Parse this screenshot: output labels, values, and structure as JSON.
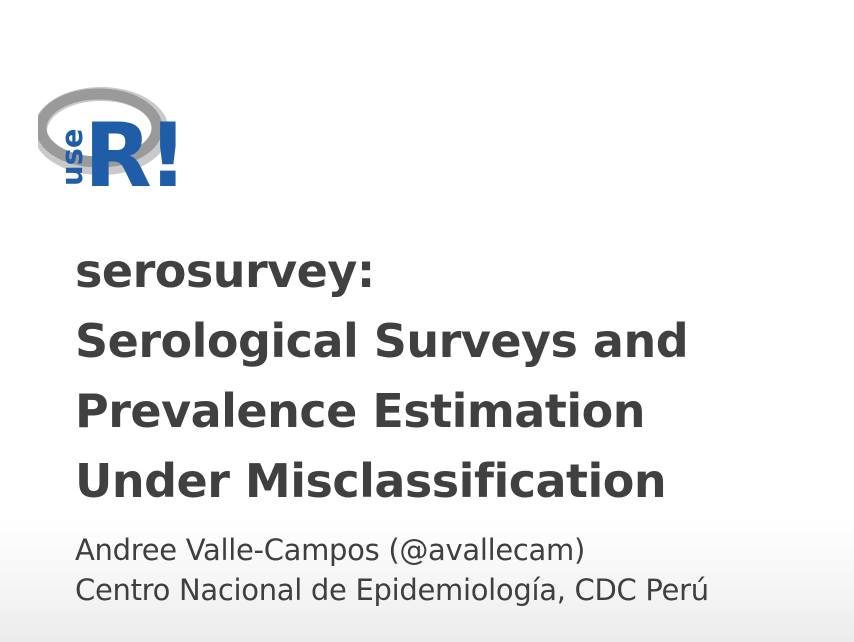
{
  "logo": {
    "text_use": "use",
    "text_r": "R!",
    "colors": {
      "ring": "#9a9a9a",
      "ring_shadow": "#c4c4c4",
      "blue": "#1f5da8"
    }
  },
  "title": {
    "lines": [
      "serosurvey:",
      "Serological Surveys and",
      "Prevalence Estimation",
      "Under Misclassification"
    ]
  },
  "authors": {
    "name": "Andree Valle-Campos (@avallecam)",
    "affiliation": "Centro Nacional de Epidemiología, CDC Perú"
  },
  "colors": {
    "text": "#404040",
    "background_top": "#ffffff",
    "background_bottom": "#ececec"
  }
}
